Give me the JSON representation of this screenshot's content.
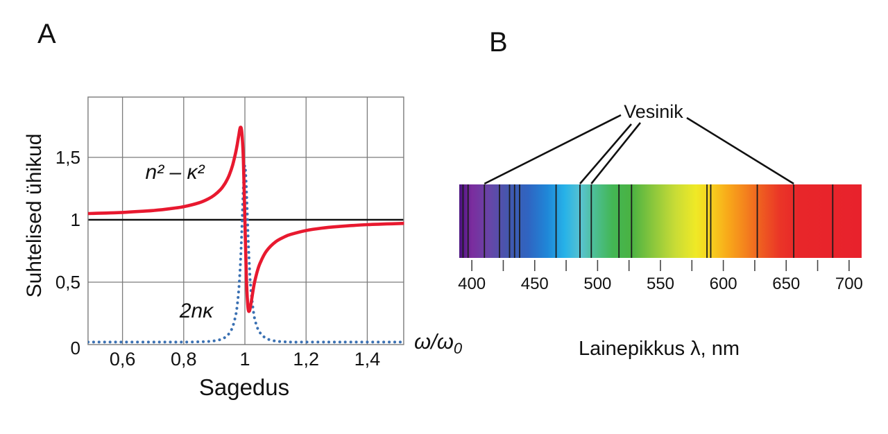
{
  "panel_a": {
    "label": "A",
    "y_axis_label": "Suhtelised ühikud",
    "x_axis_label": "Sagedus",
    "unit_base": "ω/ω",
    "unit_sub": "0",
    "curve1_label": "n² – κ²",
    "curve2_label": "2nκ"
  },
  "panel_b": {
    "label": "B",
    "annotation": "Vesinik",
    "x_axis_label": "Lainepikkus λ, nm"
  },
  "colors": {
    "curve_red": "#e8192f",
    "curve_blue": "#3a70b2",
    "grid_gray": "#7b7b7b",
    "reference_black": "#111111",
    "absorption_line": "#1c1c1c"
  },
  "chart_data": [
    {
      "type": "line",
      "panel": "A",
      "xlabel": "Sagedus",
      "ylabel": "Suhtelised ühikud",
      "x_unit_label": "ω/ω₀",
      "xlim": [
        0.4875,
        1.519
      ],
      "ylim": [
        0,
        1.985
      ],
      "grid": true,
      "reference_line_y": 1,
      "x_ticks": [
        {
          "value": 0.6,
          "label": "0,6"
        },
        {
          "value": 0.8,
          "label": "0,8"
        },
        {
          "value": 1.0,
          "label": "1"
        },
        {
          "value": 1.2,
          "label": "1,2"
        },
        {
          "value": 1.4,
          "label": "1,4"
        }
      ],
      "y_ticks": [
        {
          "value": 0,
          "label": "0"
        },
        {
          "value": 0.5,
          "label": "0,5"
        },
        {
          "value": 1.0,
          "label": "1"
        },
        {
          "value": 1.5,
          "label": "1,5"
        }
      ],
      "series": [
        {
          "name": "n² – κ²",
          "style": "solid",
          "color": "#e8192f",
          "x": [
            0.4875,
            0.52,
            0.56,
            0.6,
            0.65,
            0.7,
            0.75,
            0.8,
            0.85,
            0.88,
            0.9,
            0.92,
            0.93,
            0.94,
            0.95,
            0.96,
            0.97,
            0.975,
            0.98,
            0.985,
            0.99,
            0.995,
            1.0,
            1.005,
            1.01,
            1.015,
            1.02,
            1.03,
            1.04,
            1.05,
            1.07,
            1.1,
            1.13,
            1.15,
            1.2,
            1.25,
            1.3,
            1.4,
            1.52
          ],
          "y": [
            1.05,
            1.052,
            1.055,
            1.059,
            1.066,
            1.074,
            1.087,
            1.105,
            1.136,
            1.167,
            1.197,
            1.241,
            1.272,
            1.312,
            1.365,
            1.439,
            1.541,
            1.604,
            1.675,
            1.74,
            1.7,
            1.48,
            1.0,
            0.53,
            0.3,
            0.27,
            0.33,
            0.48,
            0.582,
            0.655,
            0.748,
            0.823,
            0.864,
            0.883,
            0.914,
            0.933,
            0.945,
            0.961,
            0.971
          ]
        },
        {
          "name": "2nκ",
          "style": "dotted",
          "color": "#3a70b2",
          "x": [
            0.4875,
            0.52,
            0.56,
            0.6,
            0.65,
            0.7,
            0.75,
            0.8,
            0.85,
            0.88,
            0.9,
            0.92,
            0.93,
            0.94,
            0.95,
            0.96,
            0.97,
            0.975,
            0.98,
            0.985,
            0.99,
            0.995,
            1.0,
            1.005,
            1.01,
            1.015,
            1.02,
            1.03,
            1.04,
            1.05,
            1.07,
            1.1,
            1.13,
            1.15,
            1.2,
            1.25,
            1.3,
            1.4,
            1.52
          ],
          "y": [
            0.02,
            0.02,
            0.02,
            0.02,
            0.02,
            0.02,
            0.02,
            0.02,
            0.022,
            0.025,
            0.03,
            0.04,
            0.05,
            0.067,
            0.094,
            0.142,
            0.235,
            0.316,
            0.44,
            0.633,
            0.92,
            1.26,
            1.435,
            1.244,
            0.903,
            0.621,
            0.433,
            0.232,
            0.141,
            0.093,
            0.049,
            0.028,
            0.022,
            0.02,
            0.02,
            0.02,
            0.02,
            0.02,
            0.02
          ]
        }
      ]
    },
    {
      "type": "spectrum",
      "panel": "B",
      "xlabel": "Lainepikkus λ, nm",
      "wavelength_range_nm": [
        390,
        710
      ],
      "tick_step_nm": 25,
      "labeled_ticks_nm": [
        400,
        450,
        500,
        550,
        600,
        650,
        700
      ],
      "absorption_lines_nm": [
        393,
        397,
        410,
        422,
        430,
        434,
        438,
        467,
        486,
        495,
        517,
        527,
        587,
        590,
        627,
        656,
        687
      ],
      "annotation": {
        "label": "Vesinik",
        "pointed_lines_nm": [
          410,
          486,
          495,
          656
        ]
      },
      "gradient_stops": [
        {
          "nm": 390,
          "color": "#4a1180"
        },
        {
          "nm": 400,
          "color": "#7b2d9e"
        },
        {
          "nm": 415,
          "color": "#6547a8"
        },
        {
          "nm": 430,
          "color": "#4158ae"
        },
        {
          "nm": 445,
          "color": "#2f65c2"
        },
        {
          "nm": 460,
          "color": "#1f87d8"
        },
        {
          "nm": 474,
          "color": "#27b2e8"
        },
        {
          "nm": 487,
          "color": "#59c3cf"
        },
        {
          "nm": 497,
          "color": "#4dbf97"
        },
        {
          "nm": 512,
          "color": "#43b654"
        },
        {
          "nm": 527,
          "color": "#4ab242"
        },
        {
          "nm": 545,
          "color": "#8ec83c"
        },
        {
          "nm": 562,
          "color": "#c9dc36"
        },
        {
          "nm": 578,
          "color": "#efe926"
        },
        {
          "nm": 591,
          "color": "#f7ce1e"
        },
        {
          "nm": 604,
          "color": "#f8a81a"
        },
        {
          "nm": 617,
          "color": "#f4841d"
        },
        {
          "nm": 631,
          "color": "#ee5a21"
        },
        {
          "nm": 645,
          "color": "#ea3527"
        },
        {
          "nm": 660,
          "color": "#e8262a"
        },
        {
          "nm": 710,
          "color": "#e8222c"
        }
      ]
    }
  ]
}
